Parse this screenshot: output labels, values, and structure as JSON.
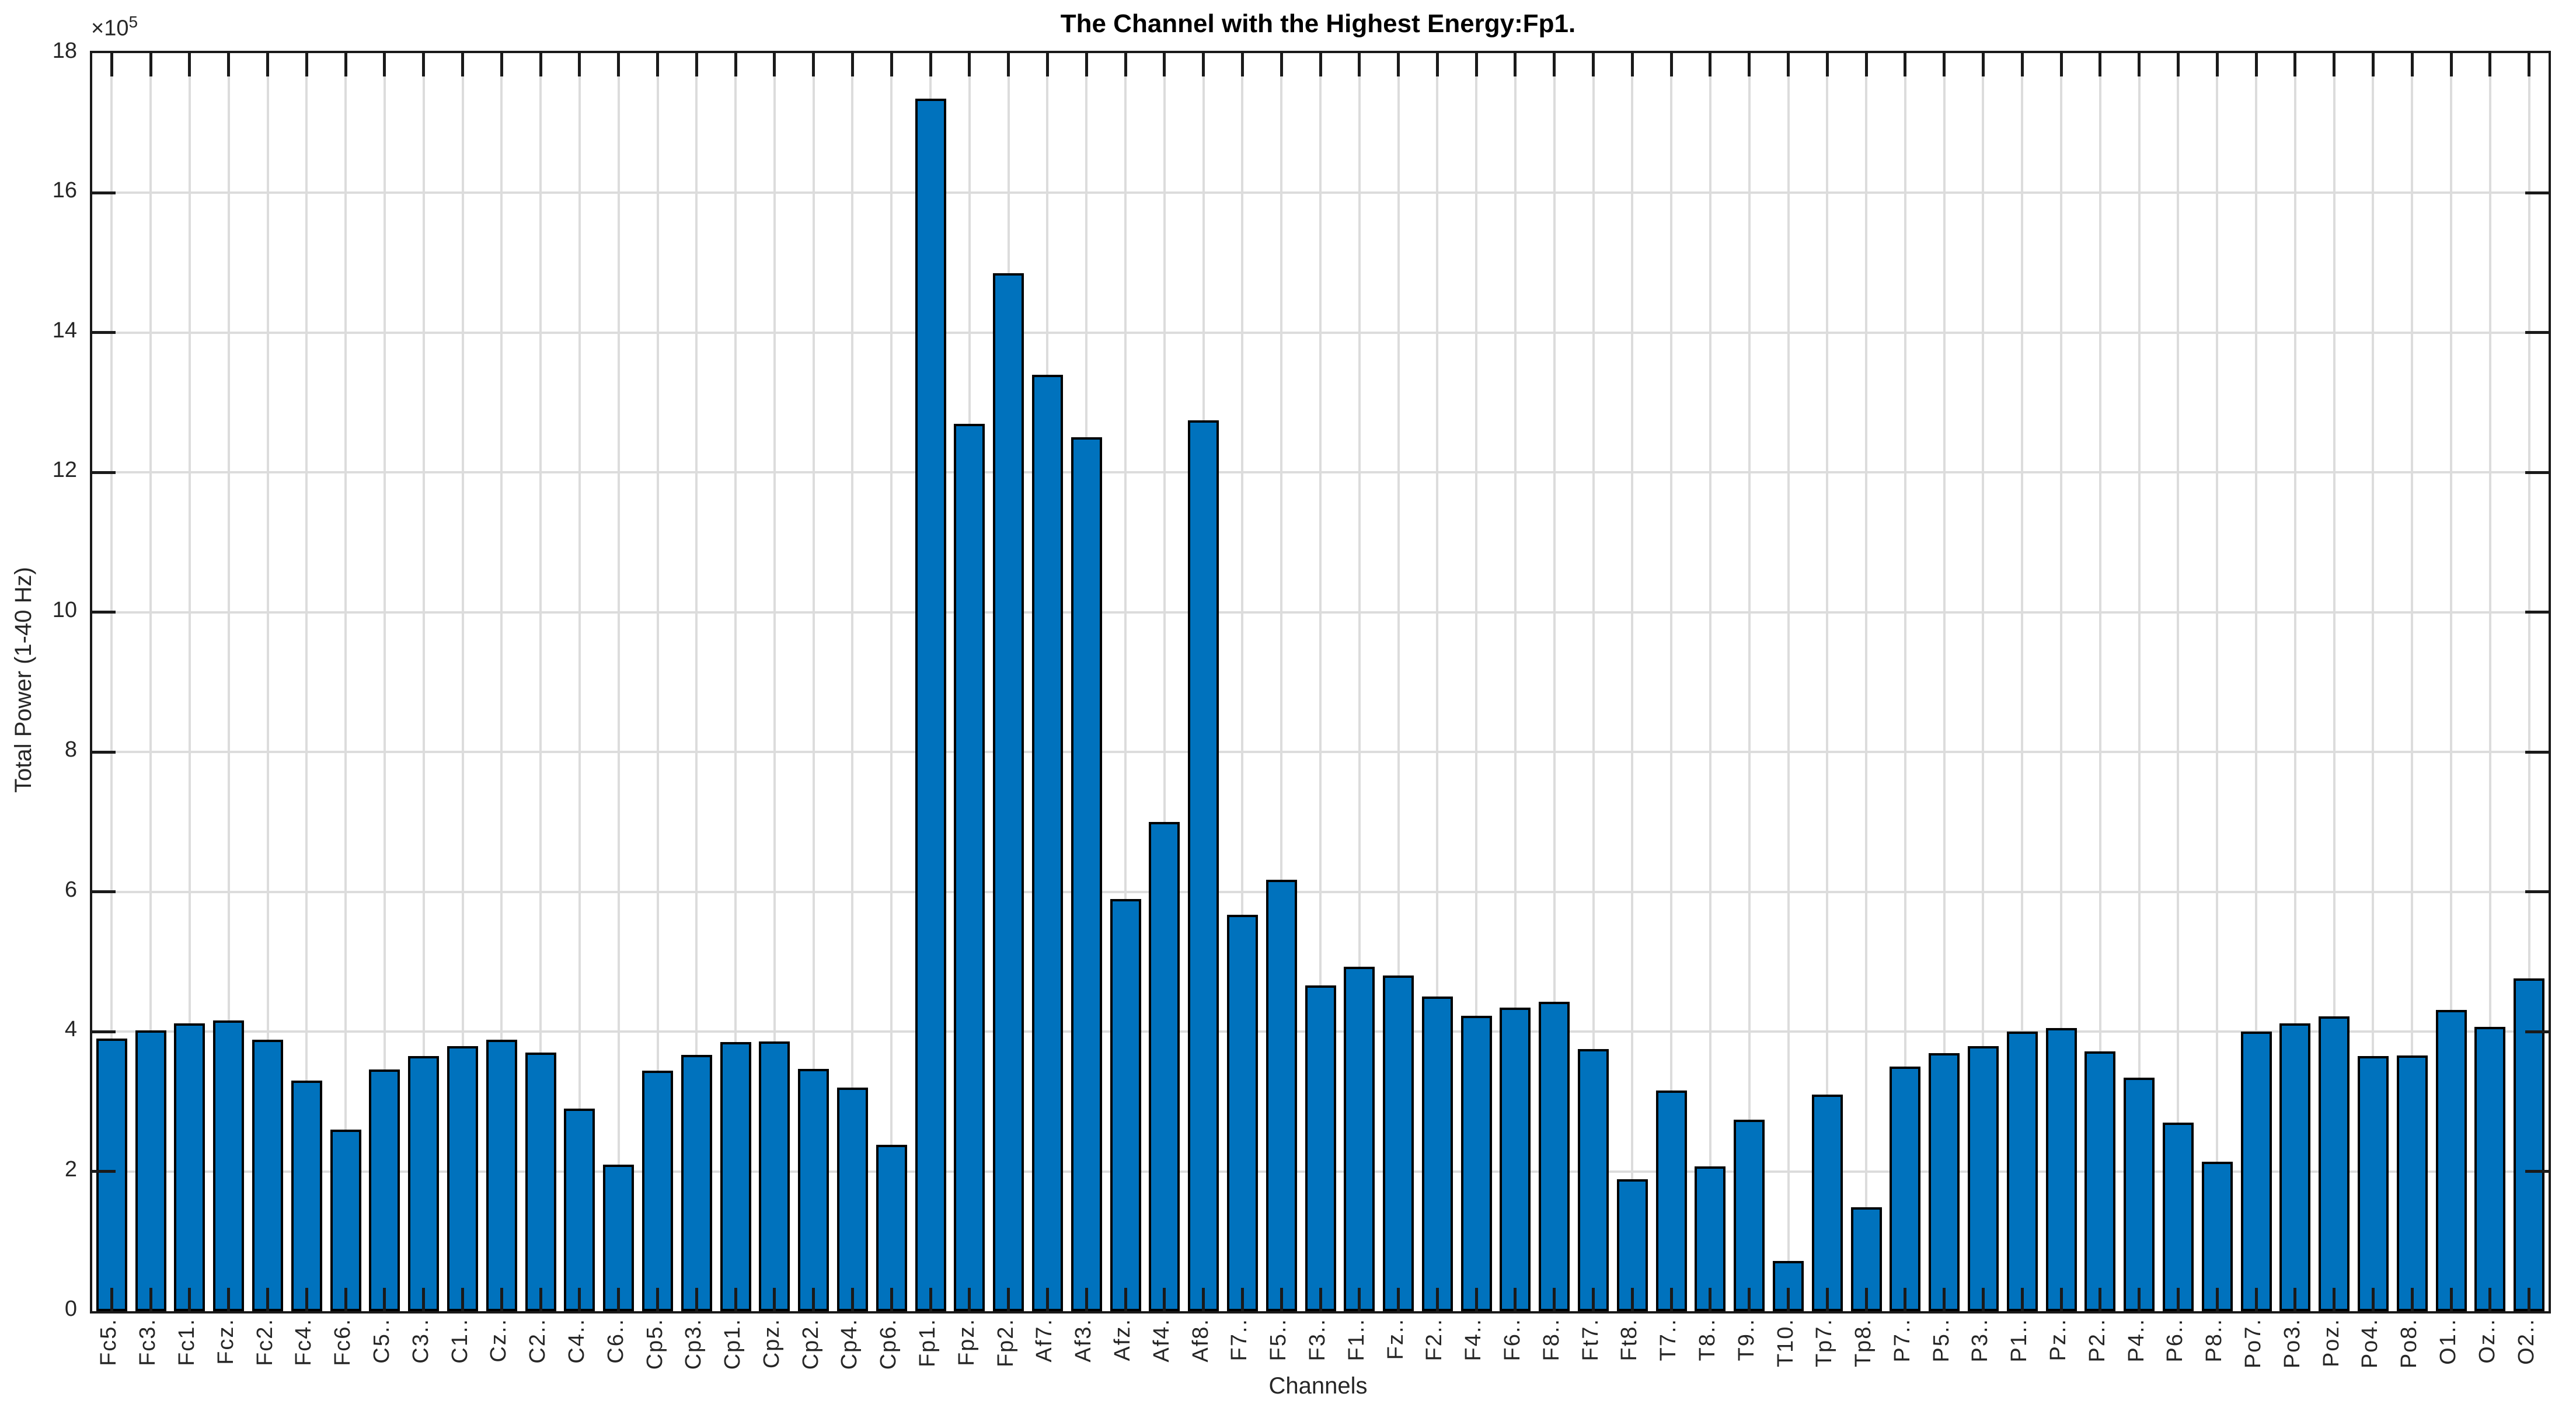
{
  "figure": {
    "title": "The Channel with the Highest Energy:Fp1.",
    "x_axis_label": "Channels",
    "y_axis_label": "Total Power (1-40 Hz)",
    "y_multiplier_base": "×10",
    "y_multiplier_exponent": "5"
  },
  "chart_data": {
    "type": "bar",
    "title": "The Channel with the Highest Energy:Fp1.",
    "xlabel": "Channels",
    "ylabel": "Total Power (1-40 Hz)",
    "y_unit_multiplier": "1e5",
    "ylim": [
      0,
      18
    ],
    "ytick_step": 2,
    "ytick_labels": [
      "0",
      "2",
      "4",
      "6",
      "8",
      "10",
      "12",
      "14",
      "16",
      "18"
    ],
    "grid": true,
    "legend": "none",
    "categories": [
      "Fc5.",
      "Fc3.",
      "Fc1.",
      "Fcz.",
      "Fc2.",
      "Fc4.",
      "Fc6.",
      "C5..",
      "C3..",
      "C1..",
      "Cz..",
      "C2..",
      "C4..",
      "C6..",
      "Cp5.",
      "Cp3.",
      "Cp1.",
      "Cpz.",
      "Cp2.",
      "Cp4.",
      "Cp6.",
      "Fp1.",
      "Fpz.",
      "Fp2.",
      "Af7.",
      "Af3.",
      "Afz.",
      "Af4.",
      "Af8.",
      "F7..",
      "F5..",
      "F3..",
      "F1..",
      "Fz..",
      "F2..",
      "F4..",
      "F6..",
      "F8..",
      "Ft7.",
      "Ft8.",
      "T7..",
      "T8..",
      "T9..",
      "T10.",
      "Tp7.",
      "Tp8.",
      "P7..",
      "P5..",
      "P3..",
      "P1..",
      "Pz..",
      "P2..",
      "P4..",
      "P6..",
      "P8..",
      "Po7.",
      "Po3.",
      "Poz.",
      "Po4.",
      "Po8.",
      "O1..",
      "Oz..",
      "O2.."
    ],
    "values": [
      3.9,
      4.02,
      4.12,
      4.16,
      3.88,
      3.3,
      2.6,
      3.46,
      3.65,
      3.79,
      3.88,
      3.7,
      2.9,
      2.1,
      3.44,
      3.67,
      3.85,
      3.86,
      3.47,
      3.2,
      2.38,
      17.35,
      12.7,
      14.85,
      13.4,
      12.5,
      5.9,
      7.0,
      12.75,
      5.67,
      6.17,
      4.66,
      4.93,
      4.8,
      4.5,
      4.23,
      4.34,
      4.43,
      3.75,
      1.89,
      3.16,
      2.07,
      2.74,
      0.72,
      3.1,
      1.49,
      3.5,
      3.69,
      3.79,
      4.0,
      4.05,
      3.72,
      3.34,
      2.7,
      2.14,
      4.0,
      4.12,
      4.22,
      3.65,
      3.66,
      4.31,
      4.07,
      4.76
    ],
    "bar_color": "#0072BD",
    "bar_edge_color": "#000000",
    "grid_color": "#dcdcdc",
    "axis_color": "#1a1a1a",
    "tick_label_color": "#262626"
  }
}
